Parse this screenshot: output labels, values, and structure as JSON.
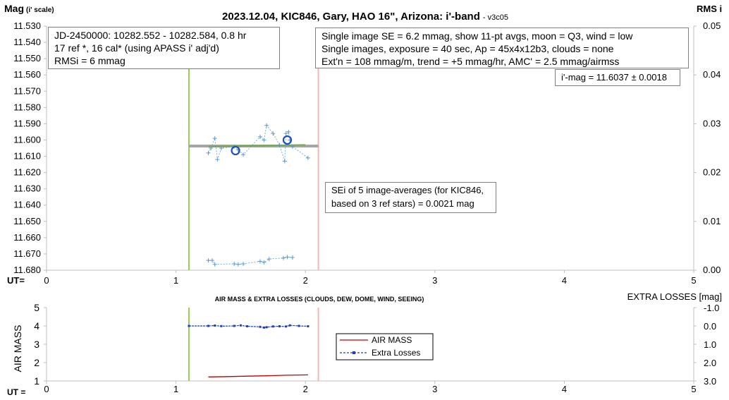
{
  "chart_data": [
    {
      "type": "scatter",
      "title": "2023.12.04, KIC846, Gary, HAO 16\", Arizona: i'-band",
      "version": "- v3c05",
      "ylabel_main": "Mag",
      "ylabel_sub": "(i' scale)",
      "y2label": "RMS i",
      "xlabel": "UT=",
      "xlim": [
        0,
        5
      ],
      "ylim": [
        11.68,
        11.53
      ],
      "y2lim": [
        0.0,
        0.05
      ],
      "xticks": [
        "0",
        "1",
        "2",
        "3",
        "4",
        "5"
      ],
      "yticks": [
        "11.530",
        "11.540",
        "11.550",
        "11.560",
        "11.570",
        "11.580",
        "11.590",
        "11.600",
        "11.610",
        "11.620",
        "11.630",
        "11.640",
        "11.650",
        "11.660",
        "11.670",
        "11.680"
      ],
      "y2ticks": [
        "0.05",
        "0.04",
        "0.03",
        "0.02",
        "0.01",
        "0.00"
      ],
      "vlines": [
        {
          "x": 1.1,
          "color": "#92d050"
        },
        {
          "x": 2.1,
          "color": "#f4b6b8"
        }
      ],
      "mean_mag": {
        "x": [
          1.1,
          2.1
        ],
        "y": 11.6037,
        "color": "#a6a6a6"
      },
      "trend": {
        "x": [
          1.25,
          2.0
        ],
        "y": [
          11.604,
          11.603
        ],
        "color": "#70ad47"
      },
      "series": [
        {
          "role": "target",
          "color": "#5b9bd5",
          "x": [
            1.25,
            1.27,
            1.3,
            1.32,
            1.35,
            1.45,
            1.48,
            1.52,
            1.65,
            1.68,
            1.7,
            1.75,
            1.8,
            1.84,
            1.85,
            1.87,
            1.88,
            1.9,
            2.02
          ],
          "y": [
            11.608,
            11.605,
            11.599,
            11.612,
            11.605,
            11.604,
            11.606,
            11.609,
            11.598,
            11.6,
            11.591,
            11.596,
            11.603,
            11.613,
            11.596,
            11.595,
            11.6,
            11.604,
            11.611
          ]
        },
        {
          "role": "averages",
          "color": "#1f4fbf",
          "x": [
            1.46,
            1.86
          ],
          "y": [
            11.6065,
            11.6
          ]
        },
        {
          "role": "rms",
          "color": "#5b9bd5",
          "x": [
            1.25,
            1.28,
            1.3,
            1.45,
            1.48,
            1.52,
            1.65,
            1.68,
            1.72,
            1.83,
            1.86,
            1.9
          ],
          "y": [
            0.002,
            0.002,
            0.0012,
            0.0013,
            0.0012,
            0.0013,
            0.0018,
            0.0016,
            0.0023,
            0.0025,
            0.0027,
            0.0026
          ]
        }
      ],
      "annotations": {
        "box1": [
          "JD-2450000: 10282.552 - 10282.584, 0.8  hr",
          "17 ref *, 16 cal* (using APASS i' adj'd)",
          "RMSi = 6 mmag"
        ],
        "box2": [
          "Single image SE = 6.2 mmag, show 11-pt avgs, moon = Q3, wind = low",
          "Single images, exposure = 40 sec, Ap = 45x4x12b3, clouds = none",
          "Ext'n = 108 mmag/m, trend = +5 mmag/hr, AMC' = 2.5 mmag/airmss"
        ],
        "imag": "i'-mag = 11.6037 ± 0.0018",
        "sei": [
          "SEi of 5 image-averages (for KIC846,",
          "based on 3 ref stars) = 0.0021 mag"
        ]
      }
    },
    {
      "type": "line",
      "title": "AIR MASS & EXTRA LOSSES (CLOUDS, DEW, DOME, WIND, SEEING)",
      "ylabel": "AIR MASS",
      "y2label": "EXTRA LOSSES [mag]",
      "xlabel": "UT =",
      "xlim": [
        0,
        5
      ],
      "ylim": [
        1,
        5
      ],
      "y2lim": [
        3.0,
        -1.0
      ],
      "xticks": [
        "0",
        "1",
        "2",
        "3",
        "4",
        "5"
      ],
      "yticks": [
        "5",
        "4",
        "3",
        "2",
        "1"
      ],
      "y2ticks": [
        "-1.0",
        "0.0",
        "1.0",
        "2.0",
        "3.0"
      ],
      "vlines": [
        {
          "x": 1.1,
          "color": "#92d050"
        },
        {
          "x": 2.1,
          "color": "#f4b6b8"
        }
      ],
      "series": [
        {
          "name": "AIR MASS",
          "color": "#c00000",
          "x": [
            1.25,
            1.4,
            1.55,
            1.7,
            1.85,
            2.02
          ],
          "y": [
            1.22,
            1.24,
            1.26,
            1.28,
            1.31,
            1.33
          ]
        },
        {
          "name": "Extra Losses",
          "color": "#1f3fbf",
          "x": [
            1.1,
            1.25,
            1.3,
            1.35,
            1.45,
            1.5,
            1.55,
            1.65,
            1.68,
            1.7,
            1.75,
            1.8,
            1.85,
            1.88,
            1.95,
            2.02
          ],
          "y": [
            0.0,
            0.0,
            -0.02,
            0.01,
            0.0,
            -0.03,
            0.02,
            0.05,
            0.09,
            0.07,
            0.03,
            0.02,
            0.03,
            -0.03,
            0.0,
            0.02
          ]
        }
      ],
      "legend": [
        "AIR MASS",
        "Extra Losses"
      ]
    }
  ]
}
